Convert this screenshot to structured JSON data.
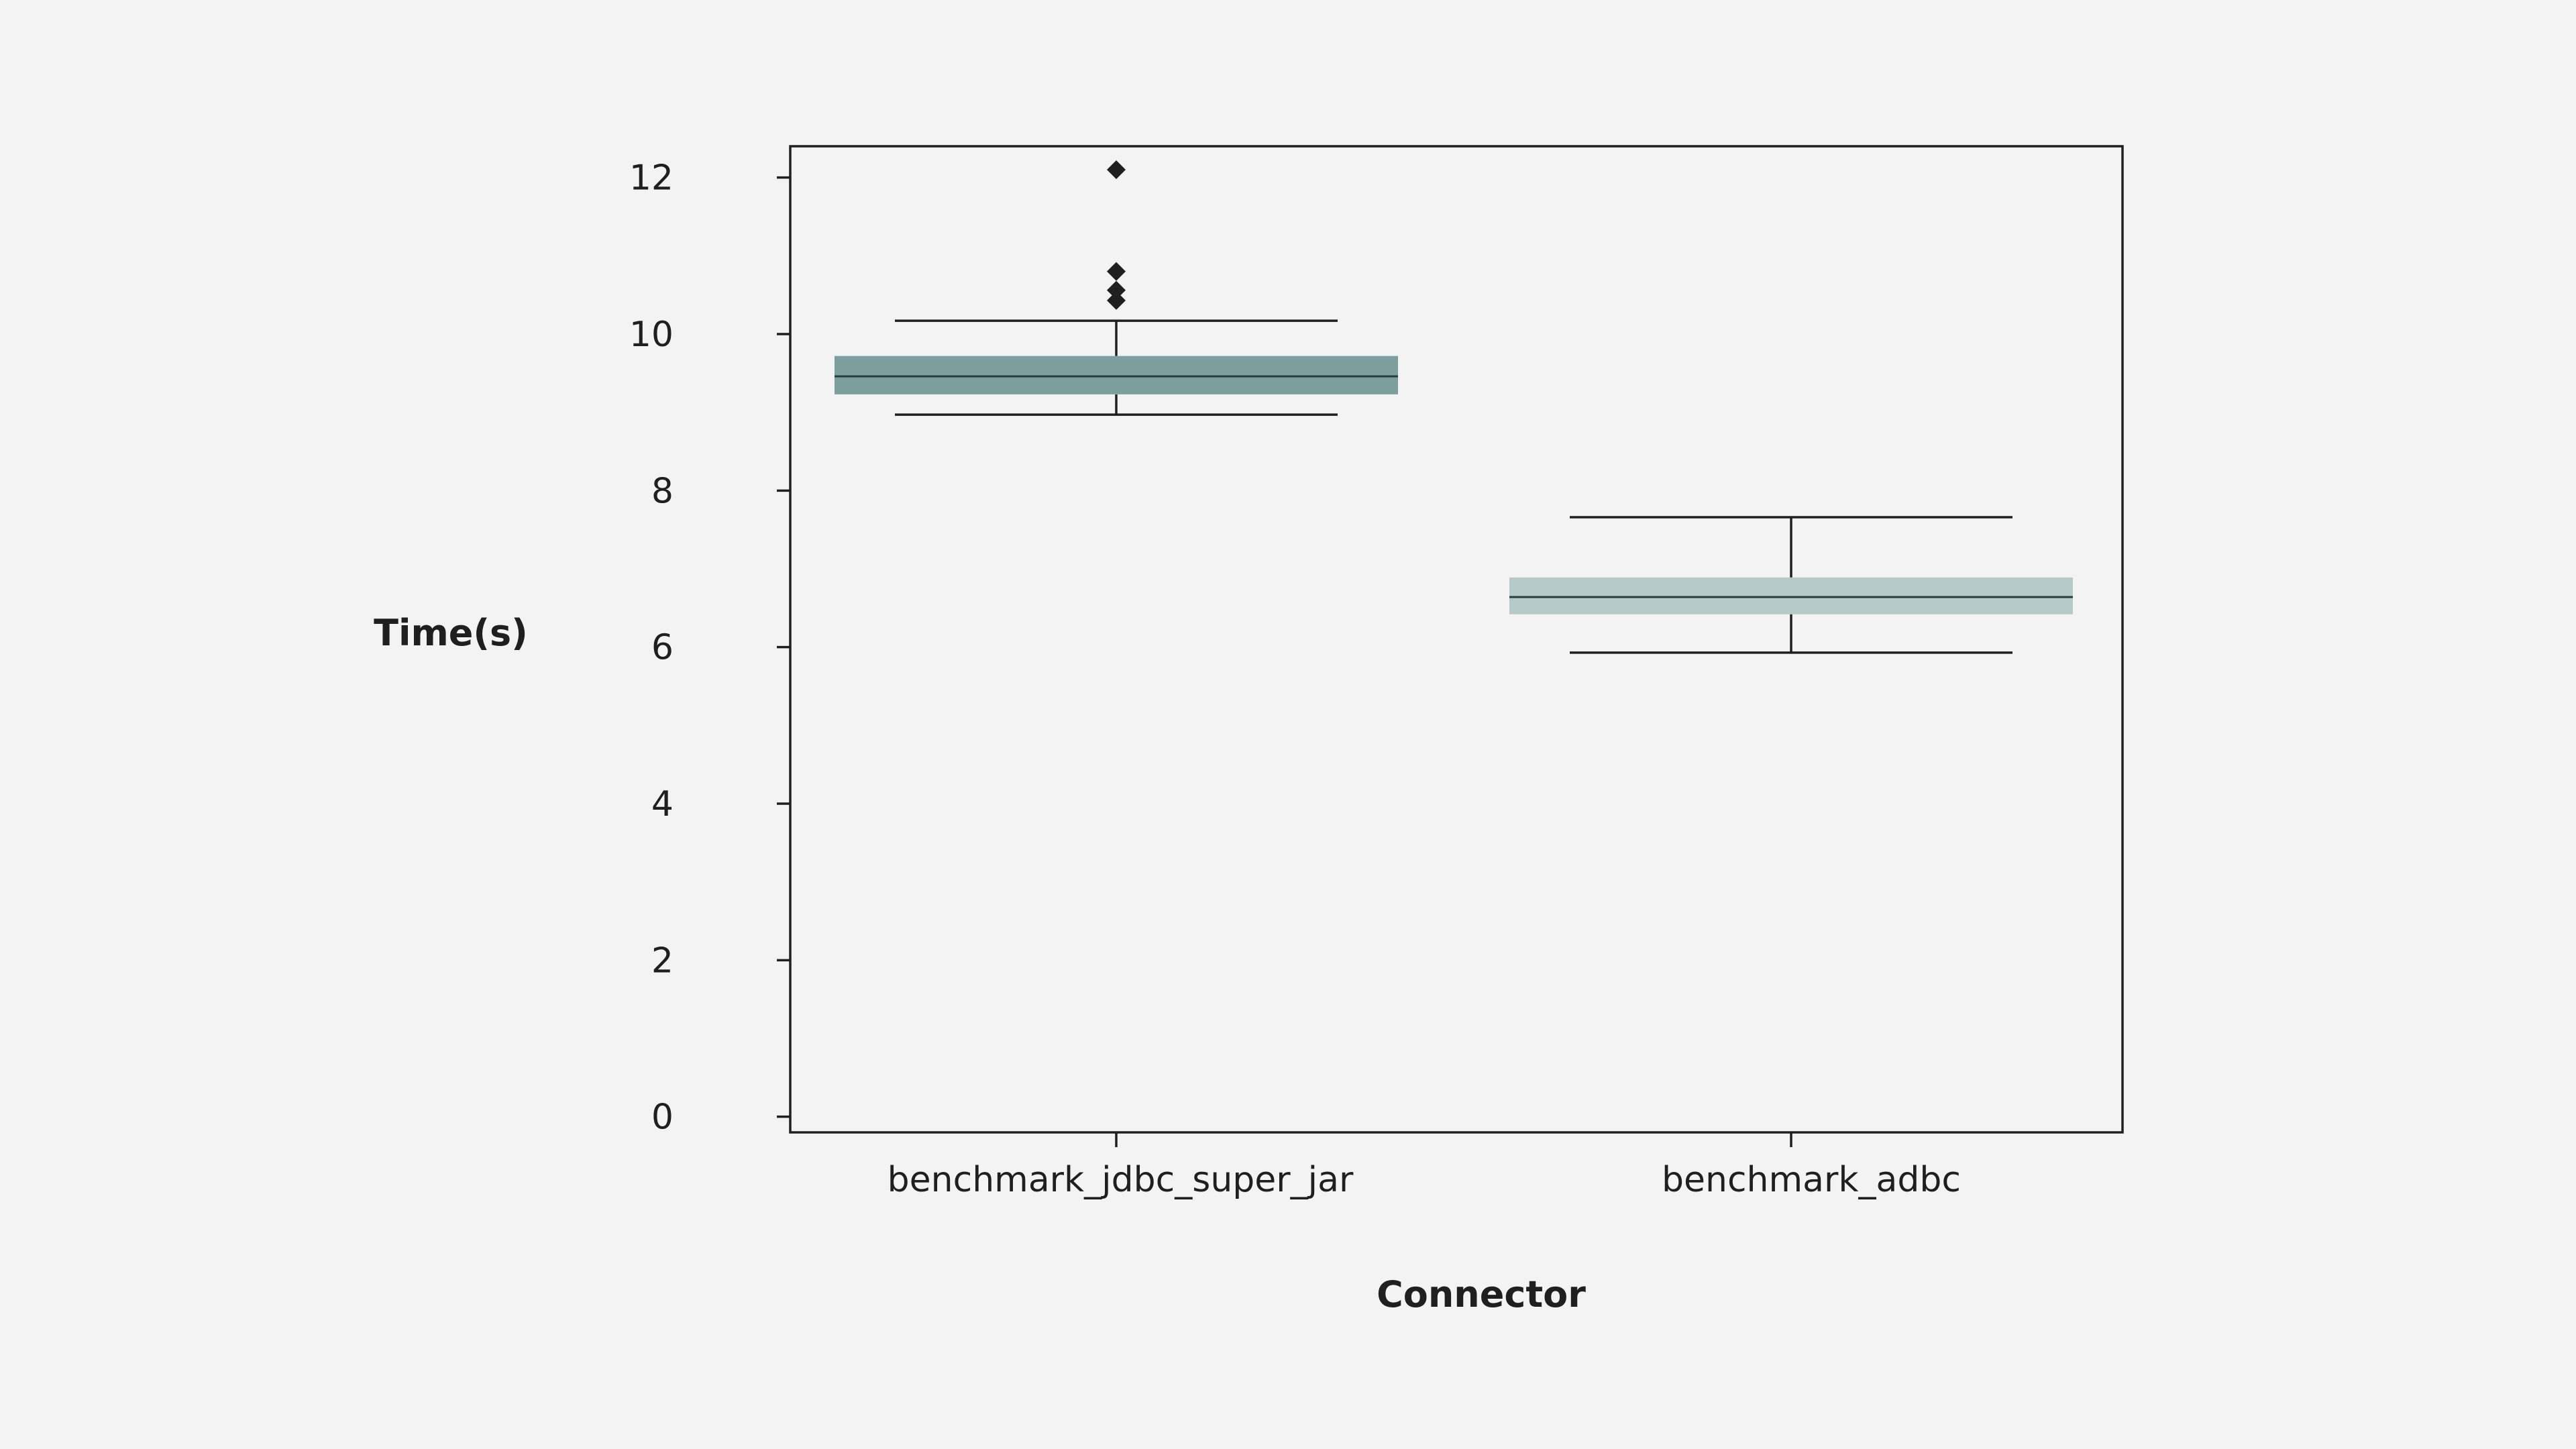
{
  "chart_data": {
    "type": "box",
    "xlabel": "Connector",
    "ylabel": "Time(s)",
    "ylim": [
      -0.2,
      12.4
    ],
    "yticks": [
      0,
      2,
      4,
      6,
      8,
      10,
      12
    ],
    "grid": false,
    "categories": [
      "benchmark_jdbc_super_jar",
      "benchmark_adbc"
    ],
    "boxes": [
      {
        "category": "benchmark_jdbc_super_jar",
        "whisker_low": 8.97,
        "q1": 9.23,
        "median": 9.46,
        "q3": 9.72,
        "whisker_high": 10.17,
        "outliers": [
          10.43,
          10.56,
          10.8,
          12.1
        ],
        "color": "#7c9f9e"
      },
      {
        "category": "benchmark_adbc",
        "whisker_low": 5.93,
        "q1": 6.42,
        "median": 6.64,
        "q3": 6.89,
        "whisker_high": 7.66,
        "outliers": [],
        "color": "#b4c9c8"
      }
    ]
  }
}
